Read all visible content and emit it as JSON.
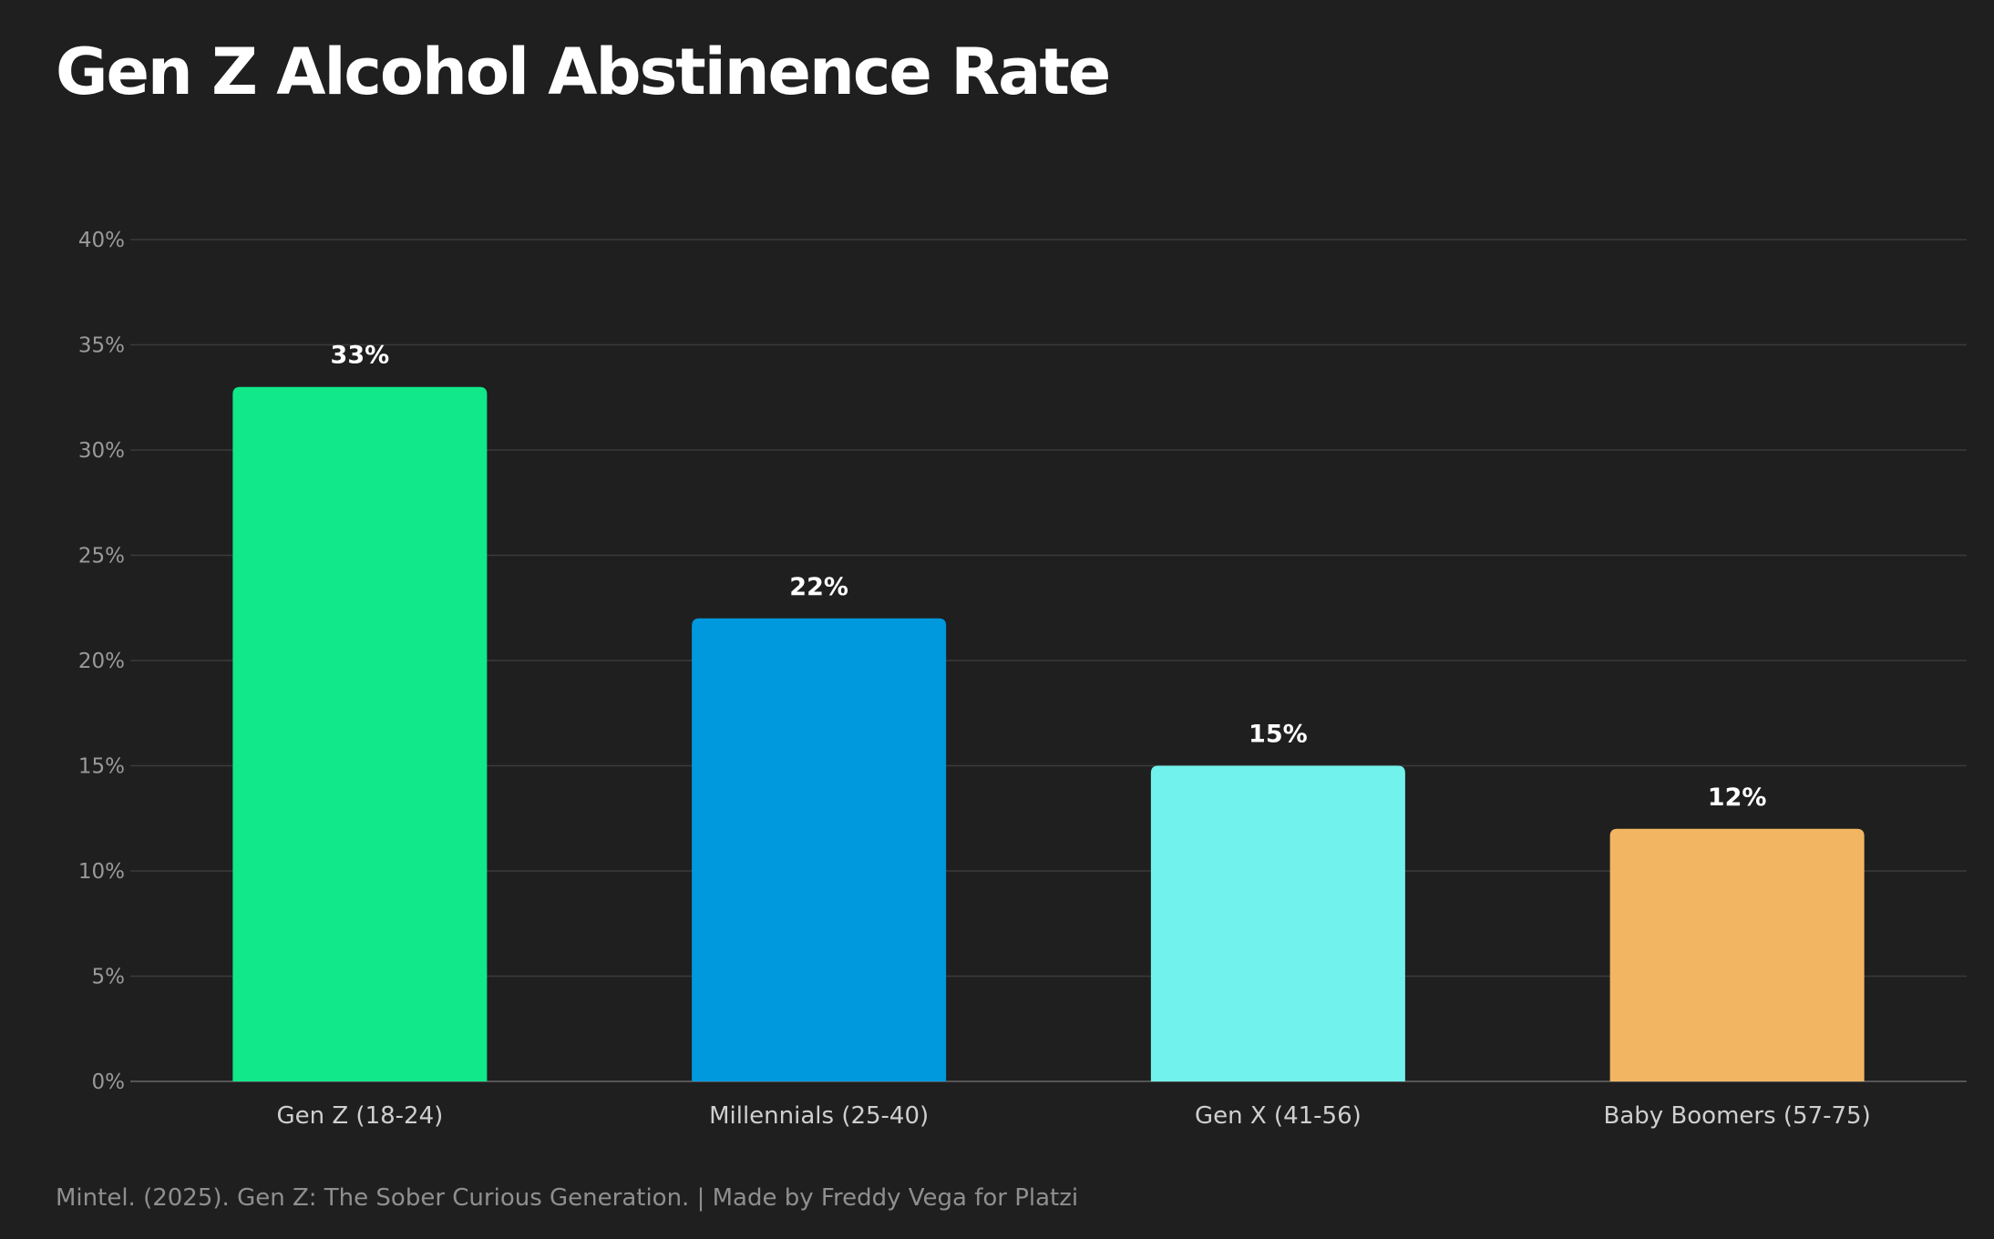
{
  "chart_data": {
    "type": "bar",
    "title": "Gen Z Alcohol Abstinence Rate",
    "categories": [
      "Gen Z (18-24)",
      "Millennials (25-40)",
      "Gen X (41-56)",
      "Baby Boomers (57-75)"
    ],
    "values": [
      33,
      22,
      15,
      12
    ],
    "value_labels": [
      "33%",
      "22%",
      "15%",
      "12%"
    ],
    "colors": [
      "#10E88A",
      "#0099DD",
      "#72F2EC",
      "#F2B662"
    ],
    "xlabel": "",
    "ylabel": "",
    "ylim": [
      0,
      40
    ],
    "yticks": [
      0,
      5,
      10,
      15,
      20,
      25,
      30,
      35,
      40
    ],
    "ytick_labels": [
      "0%",
      "5%",
      "10%",
      "15%",
      "20%",
      "25%",
      "30%",
      "35%",
      "40%"
    ],
    "grid": true,
    "legend": "none"
  },
  "footer": "Mintel. (2025). Gen Z: The Sober Curious Generation. | Made by Freddy Vega for Platzi",
  "colors": {
    "background": "#1f1f1f",
    "grid": "#3a3a3a",
    "axis_text": "#9a9a9a",
    "category_text": "#cfcfcf"
  }
}
